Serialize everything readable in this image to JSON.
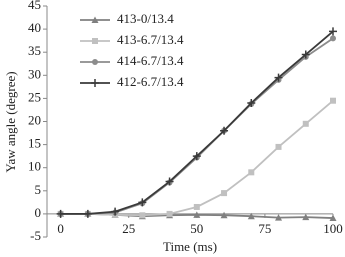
{
  "chart_data": {
    "type": "line",
    "x_label": "Time (ms)",
    "y_label": "Yaw angle (degree)",
    "x": [
      0,
      10,
      20,
      30,
      40,
      50,
      60,
      70,
      80,
      90,
      100
    ],
    "series": [
      {
        "name": "413-0/13.4",
        "color": "#808080",
        "marker": "triangle",
        "values": [
          0,
          0,
          -0.2,
          -0.5,
          -0.3,
          -0.2,
          -0.3,
          -0.5,
          -0.8,
          -0.7,
          -0.9
        ]
      },
      {
        "name": "413-6.7/13.4",
        "color": "#c0c0c0",
        "marker": "square",
        "values": [
          0,
          0,
          -0.2,
          -0.3,
          0,
          1.5,
          4.5,
          9,
          14.5,
          19.5,
          24.5
        ]
      },
      {
        "name": "414-6.7/13.4",
        "color": "#8c8c8c",
        "marker": "circle",
        "values": [
          0,
          0,
          0.3,
          2.3,
          6.8,
          12.2,
          18,
          23.8,
          29,
          34,
          38
        ]
      },
      {
        "name": "412-6.7/13.4",
        "color": "#3a3a3a",
        "marker": "plus",
        "values": [
          0,
          0,
          0.5,
          2.5,
          7,
          12.5,
          18,
          24,
          29.5,
          34.5,
          39.5
        ]
      }
    ],
    "xlim": [
      -5,
      100
    ],
    "xticks": [
      0,
      25,
      50,
      75,
      100
    ],
    "ylim": [
      -5,
      45
    ],
    "yticks": [
      -5,
      0,
      5,
      10,
      15,
      20,
      25,
      30,
      35,
      40,
      45
    ],
    "legend": "upper-left"
  }
}
